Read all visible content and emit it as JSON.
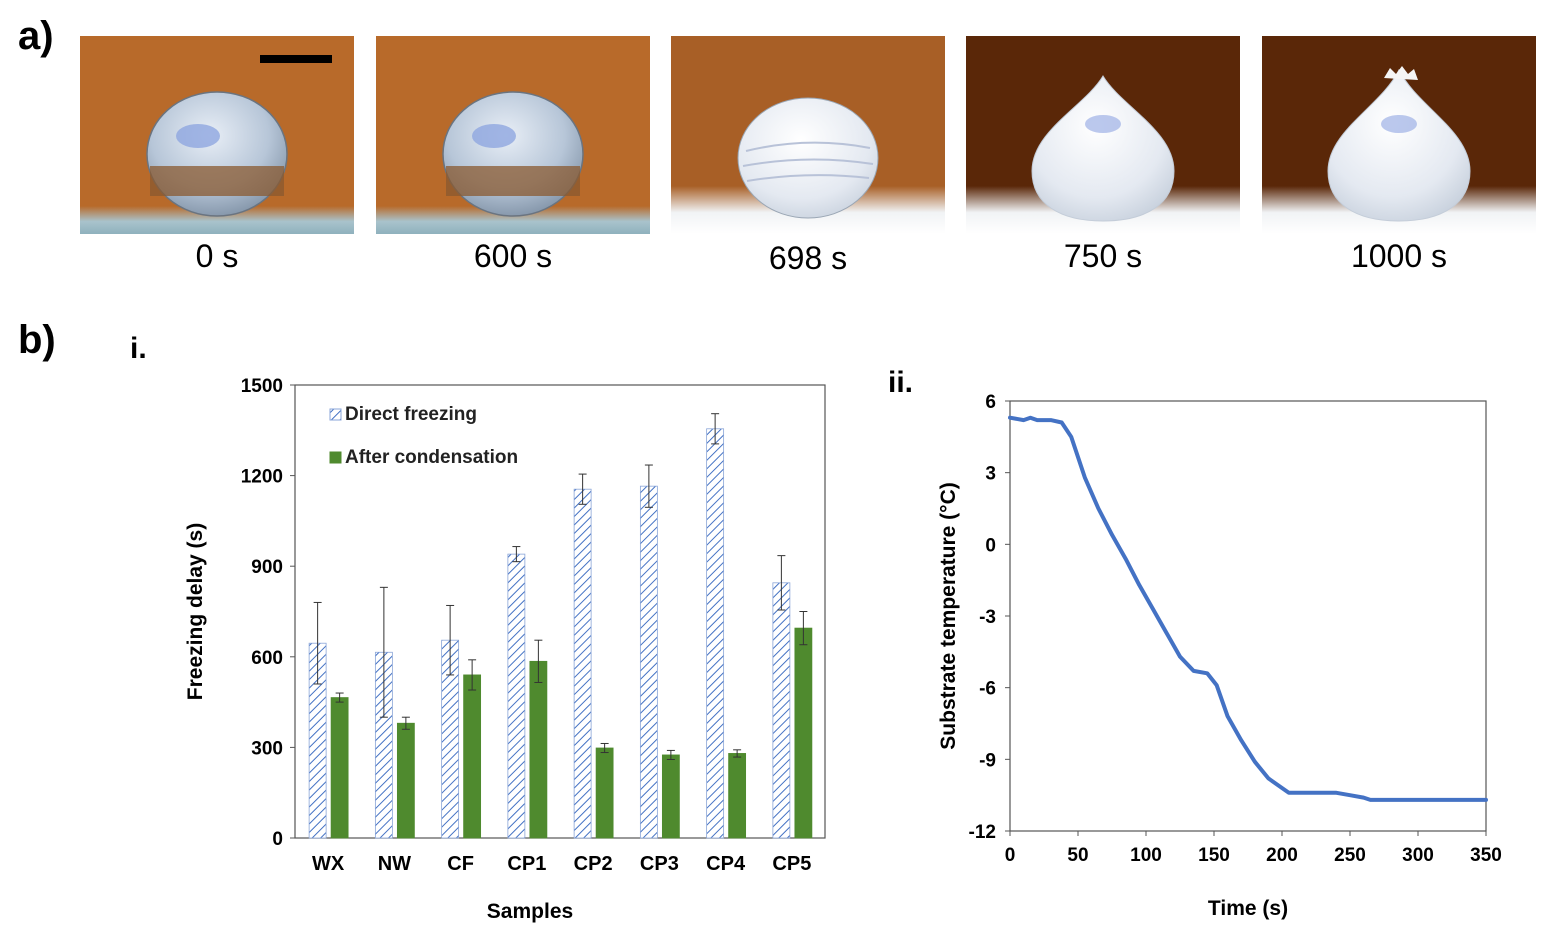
{
  "panel_a": {
    "letter": "a)",
    "frames": [
      {
        "label": "0 s",
        "state": "liquid",
        "bg": "#b86a2a"
      },
      {
        "label": "600 s",
        "state": "liquid",
        "bg": "#b86a2a"
      },
      {
        "label": "698 s",
        "state": "freezing",
        "bg": "#a85f26"
      },
      {
        "label": "750 s",
        "state": "frozen",
        "bg": "#5a2708"
      },
      {
        "label": "1000 s",
        "state": "frozen-tip",
        "bg": "#5a2708"
      }
    ]
  },
  "panel_b": {
    "letter": "b)",
    "sub_i": "i.",
    "sub_ii": "ii."
  },
  "chart_data": [
    {
      "type": "bar",
      "categories": [
        "WX",
        "NW",
        "CF",
        "CP1",
        "CP2",
        "CP3",
        "CP4",
        "CP5"
      ],
      "series": [
        {
          "name": "Direct freezing",
          "color": "#4472c4",
          "pattern": "hatched",
          "values": [
            645,
            615,
            655,
            940,
            1155,
            1165,
            1355,
            845
          ],
          "errors": [
            135,
            215,
            115,
            25,
            50,
            70,
            50,
            90
          ]
        },
        {
          "name": "After condensation",
          "color": "#4f8a2e",
          "pattern": "solid",
          "values": [
            465,
            380,
            540,
            585,
            298,
            275,
            280,
            695
          ],
          "errors": [
            15,
            20,
            50,
            70,
            15,
            15,
            12,
            55
          ]
        }
      ],
      "xlabel": "Samples",
      "ylabel": "Freezing delay (s)",
      "ylim": [
        0,
        1500
      ],
      "yticks": [
        0,
        300,
        600,
        900,
        1200,
        1500
      ],
      "legend_position": "top-left"
    },
    {
      "type": "line",
      "xlabel": "Time (s)",
      "ylabel": "Substrate temperature (°C)",
      "xlim": [
        0,
        350
      ],
      "ylim": [
        -12,
        6
      ],
      "xticks": [
        0,
        50,
        100,
        150,
        200,
        250,
        300,
        350
      ],
      "yticks": [
        6,
        3,
        0,
        -3,
        -6,
        -9,
        -12
      ],
      "series": [
        {
          "color": "#4472c4",
          "x": [
            0,
            10,
            15,
            20,
            30,
            38,
            45,
            55,
            65,
            75,
            85,
            95,
            105,
            115,
            125,
            135,
            145,
            152,
            160,
            170,
            180,
            190,
            200,
            205,
            210,
            220,
            240,
            250,
            260,
            265,
            300,
            350
          ],
          "y": [
            5.3,
            5.2,
            5.3,
            5.2,
            5.2,
            5.1,
            4.5,
            2.8,
            1.5,
            0.4,
            -0.6,
            -1.7,
            -2.7,
            -3.7,
            -4.7,
            -5.3,
            -5.4,
            -5.9,
            -7.2,
            -8.2,
            -9.1,
            -9.8,
            -10.2,
            -10.4,
            -10.4,
            -10.4,
            -10.4,
            -10.5,
            -10.6,
            -10.7,
            -10.7,
            -10.7
          ]
        }
      ]
    }
  ]
}
